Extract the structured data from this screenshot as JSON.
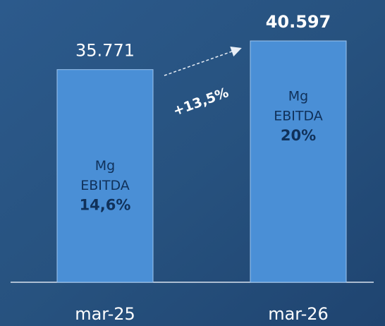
{
  "chart_data": {
    "type": "bar",
    "categories": [
      "mar-25",
      "mar-26"
    ],
    "values": [
      35771,
      40597
    ],
    "value_labels": [
      "35.771",
      "40.597"
    ],
    "color": "#4a8fd6",
    "margin_title": [
      "Mg",
      "EBITDA"
    ],
    "margins": [
      14.6,
      20
    ],
    "margin_labels": [
      "14,6%",
      "20%"
    ],
    "growth": {
      "value": 13.5,
      "label": "+13,5%"
    }
  }
}
